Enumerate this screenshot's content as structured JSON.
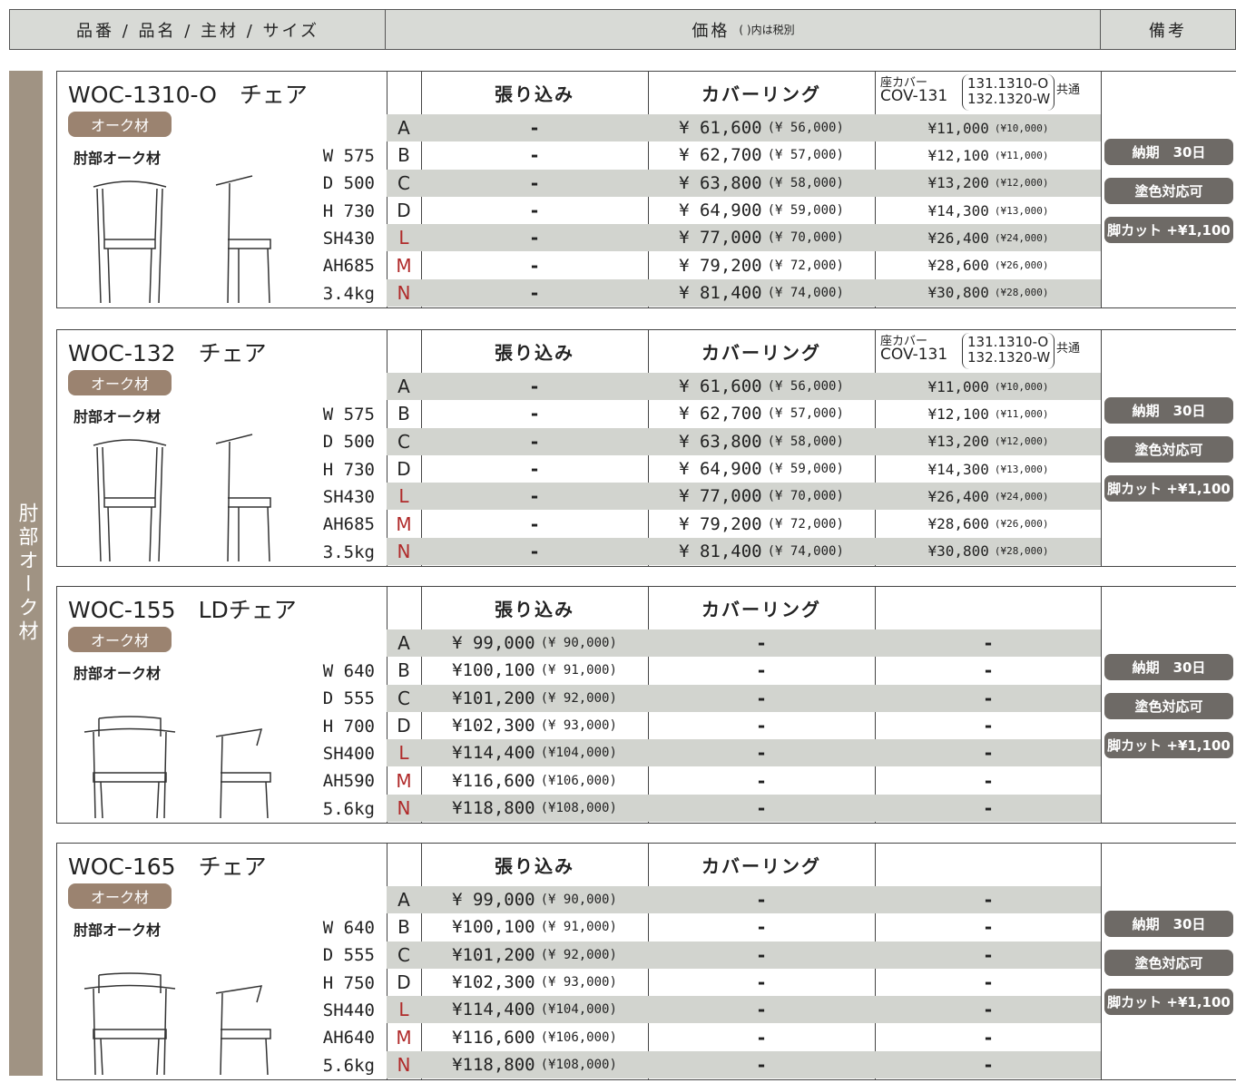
{
  "header": {
    "columns": [
      "品番 / 品名 / 主材 / サイズ",
      "価格",
      "備考"
    ],
    "price_note": "( )内は税別"
  },
  "side_label": "肘部オーク材",
  "products": [
    {
      "name": "WOC-1310-O　チェア",
      "wood": "オーク材",
      "material": "肘部オーク材",
      "sizes": [
        "W 575",
        "D 500",
        "H 730",
        "SH430",
        "AH685",
        "3.4kg"
      ],
      "columns": [
        "張り込み",
        "カバーリング"
      ],
      "cover": {
        "label": "座カバー",
        "code": "COV-131",
        "models": [
          "131.1310-O",
          "132.1320-W"
        ],
        "note": "共通"
      },
      "grades": [
        "A",
        "B",
        "C",
        "D",
        "L",
        "M",
        "N"
      ],
      "rows": [
        [
          "-",
          {
            "price": "¥ 61,600",
            "tax": "(¥ 56,000)"
          },
          {
            "price": "¥11,000",
            "tax": "(¥10,000)"
          }
        ],
        [
          "-",
          {
            "price": "¥ 62,700",
            "tax": "(¥ 57,000)"
          },
          {
            "price": "¥12,100",
            "tax": "(¥11,000)"
          }
        ],
        [
          "-",
          {
            "price": "¥ 63,800",
            "tax": "(¥ 58,000)"
          },
          {
            "price": "¥13,200",
            "tax": "(¥12,000)"
          }
        ],
        [
          "-",
          {
            "price": "¥ 64,900",
            "tax": "(¥ 59,000)"
          },
          {
            "price": "¥14,300",
            "tax": "(¥13,000)"
          }
        ],
        [
          "-",
          {
            "price": "¥ 77,000",
            "tax": "(¥ 70,000)"
          },
          {
            "price": "¥26,400",
            "tax": "(¥24,000)"
          }
        ],
        [
          "-",
          {
            "price": "¥ 79,200",
            "tax": "(¥ 72,000)"
          },
          {
            "price": "¥28,600",
            "tax": "(¥26,000)"
          }
        ],
        [
          "-",
          {
            "price": "¥ 81,400",
            "tax": "(¥ 74,000)"
          },
          {
            "price": "¥30,800",
            "tax": "(¥28,000)"
          }
        ]
      ],
      "notes": [
        "納期　30日",
        "塗色対応可",
        "脚カット +¥1,100"
      ]
    },
    {
      "name": "WOC-132　チェア",
      "wood": "オーク材",
      "material": "肘部オーク材",
      "sizes": [
        "W 575",
        "D 500",
        "H 730",
        "SH430",
        "AH685",
        "3.5kg"
      ],
      "columns": [
        "張り込み",
        "カバーリング"
      ],
      "cover": {
        "label": "座カバー",
        "code": "COV-131",
        "models": [
          "131.1310-O",
          "132.1320-W"
        ],
        "note": "共通"
      },
      "grades": [
        "A",
        "B",
        "C",
        "D",
        "L",
        "M",
        "N"
      ],
      "rows": [
        [
          "-",
          {
            "price": "¥ 61,600",
            "tax": "(¥ 56,000)"
          },
          {
            "price": "¥11,000",
            "tax": "(¥10,000)"
          }
        ],
        [
          "-",
          {
            "price": "¥ 62,700",
            "tax": "(¥ 57,000)"
          },
          {
            "price": "¥12,100",
            "tax": "(¥11,000)"
          }
        ],
        [
          "-",
          {
            "price": "¥ 63,800",
            "tax": "(¥ 58,000)"
          },
          {
            "price": "¥13,200",
            "tax": "(¥12,000)"
          }
        ],
        [
          "-",
          {
            "price": "¥ 64,900",
            "tax": "(¥ 59,000)"
          },
          {
            "price": "¥14,300",
            "tax": "(¥13,000)"
          }
        ],
        [
          "-",
          {
            "price": "¥ 77,000",
            "tax": "(¥ 70,000)"
          },
          {
            "price": "¥26,400",
            "tax": "(¥24,000)"
          }
        ],
        [
          "-",
          {
            "price": "¥ 79,200",
            "tax": "(¥ 72,000)"
          },
          {
            "price": "¥28,600",
            "tax": "(¥26,000)"
          }
        ],
        [
          "-",
          {
            "price": "¥ 81,400",
            "tax": "(¥ 74,000)"
          },
          {
            "price": "¥30,800",
            "tax": "(¥28,000)"
          }
        ]
      ],
      "notes": [
        "納期　30日",
        "塗色対応可",
        "脚カット +¥1,100"
      ]
    },
    {
      "name": "WOC-155　LDチェア",
      "wood": "オーク材",
      "material": "肘部オーク材",
      "sizes": [
        "W 640",
        "D 555",
        "H 700",
        "SH400",
        "AH590",
        "5.6kg"
      ],
      "columns": [
        "張り込み",
        "カバーリング"
      ],
      "grades": [
        "A",
        "B",
        "C",
        "D",
        "L",
        "M",
        "N"
      ],
      "rows": [
        [
          {
            "price": "¥ 99,000",
            "tax": "(¥ 90,000)"
          },
          "-",
          "-"
        ],
        [
          {
            "price": "¥100,100",
            "tax": "(¥ 91,000)"
          },
          "-",
          "-"
        ],
        [
          {
            "price": "¥101,200",
            "tax": "(¥ 92,000)"
          },
          "-",
          "-"
        ],
        [
          {
            "price": "¥102,300",
            "tax": "(¥ 93,000)"
          },
          "-",
          "-"
        ],
        [
          {
            "price": "¥114,400",
            "tax": "(¥104,000)"
          },
          "-",
          "-"
        ],
        [
          {
            "price": "¥116,600",
            "tax": "(¥106,000)"
          },
          "-",
          "-"
        ],
        [
          {
            "price": "¥118,800",
            "tax": "(¥108,000)"
          },
          "-",
          "-"
        ]
      ],
      "notes": [
        "納期　30日",
        "塗色対応可",
        "脚カット +¥1,100"
      ]
    },
    {
      "name": "WOC-165　チェア",
      "wood": "オーク材",
      "material": "肘部オーク材",
      "sizes": [
        "W 640",
        "D 555",
        "H 750",
        "SH440",
        "AH640",
        "5.6kg"
      ],
      "columns": [
        "張り込み",
        "カバーリング"
      ],
      "grades": [
        "A",
        "B",
        "C",
        "D",
        "L",
        "M",
        "N"
      ],
      "rows": [
        [
          {
            "price": "¥ 99,000",
            "tax": "(¥ 90,000)"
          },
          "-",
          "-"
        ],
        [
          {
            "price": "¥100,100",
            "tax": "(¥ 91,000)"
          },
          "-",
          "-"
        ],
        [
          {
            "price": "¥101,200",
            "tax": "(¥ 92,000)"
          },
          "-",
          "-"
        ],
        [
          {
            "price": "¥102,300",
            "tax": "(¥ 93,000)"
          },
          "-",
          "-"
        ],
        [
          {
            "price": "¥114,400",
            "tax": "(¥104,000)"
          },
          "-",
          "-"
        ],
        [
          {
            "price": "¥116,600",
            "tax": "(¥106,000)"
          },
          "-",
          "-"
        ],
        [
          {
            "price": "¥118,800",
            "tax": "(¥108,000)"
          },
          "-",
          "-"
        ]
      ],
      "notes": [
        "納期　30日",
        "塗色対応可",
        "脚カット +¥1,100"
      ]
    }
  ]
}
